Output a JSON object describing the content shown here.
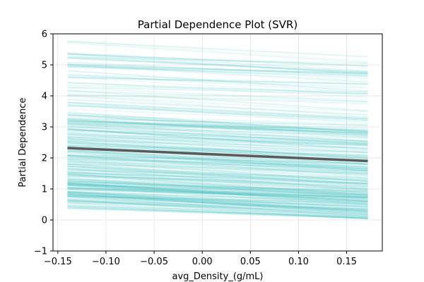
{
  "chart_data": {
    "type": "line",
    "title": "Partial Dependence Plot (SVR)",
    "xlabel": "avg_Density_(g/mL)",
    "ylabel": "Partial Dependence",
    "xlim": [
      -0.155,
      0.187
    ],
    "ylim": [
      -1,
      6
    ],
    "x_ticks": [
      -0.15,
      -0.1,
      -0.05,
      0.0,
      0.05,
      0.1,
      0.15
    ],
    "x_tick_labels": [
      "−0.15",
      "−0.10",
      "−0.05",
      "0.00",
      "0.05",
      "0.10",
      "0.15"
    ],
    "y_ticks": [
      -1,
      0,
      1,
      2,
      3,
      4,
      5,
      6
    ],
    "y_tick_labels": [
      "−1",
      "0",
      "1",
      "2",
      "3",
      "4",
      "5",
      "6"
    ],
    "grid": true,
    "x_range": [
      -0.14,
      0.172
    ],
    "ice_color": "#3bbfbf",
    "average_color": "#5a5a5a",
    "ice_lines": {
      "count": 300,
      "start_range": [
        0.35,
        5.85
      ],
      "end_range": [
        0.05,
        5.45
      ]
    },
    "series": [
      {
        "x": [
          -0.14,
          0.172
        ],
        "y": [
          2.32,
          1.9
        ]
      }
    ]
  }
}
